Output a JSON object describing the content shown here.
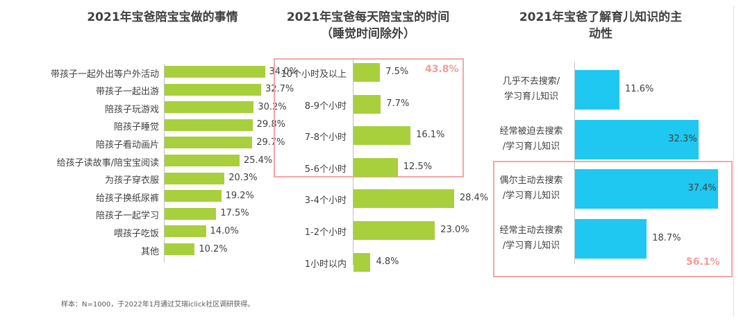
{
  "colors": {
    "green": "#a8cf3c",
    "blue": "#1ec8f0",
    "highlight_text": "#f39c9c",
    "highlight_border": "#f3a6a6"
  },
  "footnote": "样本：N=1000，于2022年1月通过艾瑞iclick社区调研获得。",
  "chart_data": [
    {
      "type": "bar",
      "orientation": "horizontal",
      "title": "2021年宝爸陪宝宝做的事情",
      "categories": [
        "带孩子一起外出等户外活动",
        "带孩子一起出游",
        "陪孩子玩游戏",
        "陪孩子睡觉",
        "陪孩子看动画片",
        "给孩子读故事/陪宝宝阅读",
        "为孩子穿衣服",
        "给孩子换纸尿裤",
        "陪孩子一起学习",
        "喂孩子吃饭",
        "其他"
      ],
      "values": [
        34.0,
        32.7,
        30.2,
        29.8,
        29.7,
        25.4,
        20.3,
        19.2,
        17.5,
        14.0,
        10.2
      ],
      "value_labels": [
        "34.0%",
        "32.7%",
        "30.2%",
        "29.8%",
        "29.7%",
        "25.4%",
        "20.3%",
        "19.2%",
        "17.5%",
        "14.0%",
        "10.2%"
      ],
      "unit": "%",
      "color": "#a8cf3c"
    },
    {
      "type": "bar",
      "orientation": "horizontal",
      "title": "2021年宝爸每天陪宝宝的时间",
      "subtitle": "（睡觉时间除外）",
      "categories": [
        "10个小时及以上",
        "8-9个小时",
        "7-8个小时",
        "5-6个小时",
        "3-4个小时",
        "1-2个小时",
        "1小时以内"
      ],
      "values": [
        7.5,
        7.7,
        16.1,
        12.5,
        28.4,
        23.0,
        4.8
      ],
      "value_labels": [
        "7.5%",
        "7.7%",
        "16.1%",
        "12.5%",
        "28.4%",
        "23.0%",
        "4.8%"
      ],
      "unit": "%",
      "color": "#a8cf3c",
      "annotation": {
        "text": "43.8%",
        "highlighted_categories": [
          "10个小时及以上",
          "8-9个小时",
          "7-8个小时",
          "5-6个小时"
        ]
      }
    },
    {
      "type": "bar",
      "orientation": "horizontal",
      "title": "2021年宝爸了解育儿知识的主",
      "title_line2": "动性",
      "categories": [
        {
          "line1": "几乎不去搜索/",
          "line2": "学习育儿知识"
        },
        {
          "line1": "经常被迫去搜索",
          "line2": "/学习育儿知识"
        },
        {
          "line1": "偶尔主动去搜索",
          "line2": "/学习育儿知识"
        },
        {
          "line1": "经常主动去搜索",
          "line2": "/学习育儿知识"
        }
      ],
      "values": [
        11.6,
        32.3,
        37.4,
        18.7
      ],
      "value_labels": [
        "11.6%",
        "32.3%",
        "37.4%",
        "18.7%"
      ],
      "unit": "%",
      "color": "#1ec8f0",
      "annotation": {
        "text": "56.1%",
        "highlighted_categories": [
          "偶尔主动去搜索/学习育儿知识",
          "经常主动去搜索/学习育儿知识"
        ]
      }
    }
  ]
}
